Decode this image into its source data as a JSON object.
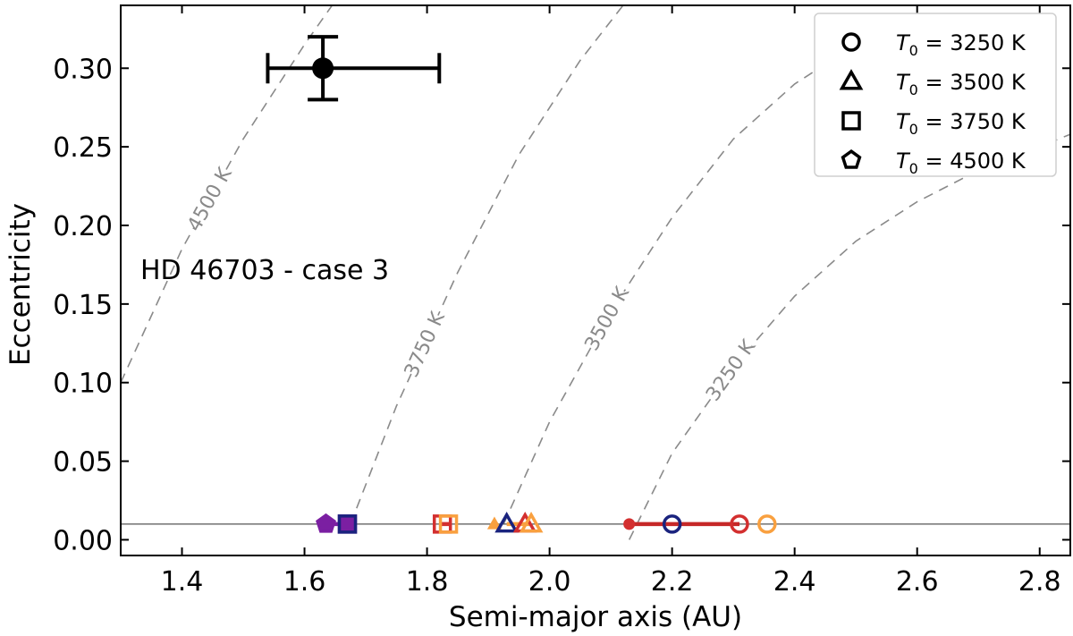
{
  "chart_data": {
    "type": "scatter",
    "xlabel": "Semi-major axis (AU)",
    "ylabel": "Eccentricity",
    "xlim": [
      1.3,
      2.85
    ],
    "ylim": [
      -0.01,
      0.34
    ],
    "x_ticks": [
      1.4,
      1.6,
      1.8,
      2.0,
      2.2,
      2.4,
      2.6,
      2.8
    ],
    "x_tick_labels": [
      "1.4",
      "1.6",
      "1.8",
      "2.0",
      "2.2",
      "2.4",
      "2.6",
      "2.8"
    ],
    "y_ticks": [
      0.0,
      0.05,
      0.1,
      0.15,
      0.2,
      0.25,
      0.3
    ],
    "y_tick_labels": [
      "0.00",
      "0.05",
      "0.10",
      "0.15",
      "0.20",
      "0.25",
      "0.30"
    ],
    "grid": false,
    "legend_position": "top-right",
    "annotation": "HD 46703 - case 3",
    "horizontal_line_y": 0.01,
    "observed": {
      "x": 1.63,
      "y": 0.3,
      "x_err": [
        0.09,
        0.19
      ],
      "y_err": [
        0.02,
        0.02
      ]
    },
    "dashed_curves": [
      {
        "label": "4500 K",
        "points": [
          [
            1.3,
            0.1
          ],
          [
            1.4,
            0.185
          ],
          [
            1.5,
            0.255
          ],
          [
            1.6,
            0.315
          ],
          [
            1.645,
            0.34
          ]
        ]
      },
      {
        "label": "3750 K",
        "points": [
          [
            1.675,
            0.01
          ],
          [
            1.75,
            0.085
          ],
          [
            1.85,
            0.17
          ],
          [
            1.95,
            0.245
          ],
          [
            2.05,
            0.305
          ],
          [
            2.12,
            0.34
          ]
        ]
      },
      {
        "label": "3500 K",
        "points": [
          [
            1.925,
            0.01
          ],
          [
            2.0,
            0.075
          ],
          [
            2.1,
            0.145
          ],
          [
            2.2,
            0.205
          ],
          [
            2.3,
            0.255
          ],
          [
            2.4,
            0.29
          ],
          [
            2.5,
            0.315
          ]
        ]
      },
      {
        "label": "3250 K",
        "points": [
          [
            2.13,
            0.0
          ],
          [
            2.2,
            0.055
          ],
          [
            2.3,
            0.11
          ],
          [
            2.4,
            0.155
          ],
          [
            2.5,
            0.19
          ],
          [
            2.6,
            0.215
          ],
          [
            2.7,
            0.235
          ],
          [
            2.8,
            0.25
          ],
          [
            2.85,
            0.258
          ]
        ]
      }
    ],
    "legend": [
      {
        "marker": "circle",
        "text": "T0 = 3250 K",
        "symbol": "T",
        "sub": "0",
        "rest": " = 3250 K"
      },
      {
        "marker": "triangle",
        "text": "T0 = 3500 K",
        "symbol": "T",
        "sub": "0",
        "rest": " = 3500 K"
      },
      {
        "marker": "square",
        "text": "T0 = 3750 K",
        "symbol": "T",
        "sub": "0",
        "rest": " = 3750 K"
      },
      {
        "marker": "pentagon",
        "text": "T0 = 4500 K",
        "symbol": "T",
        "sub": "0",
        "rest": " = 4500 K"
      }
    ],
    "tracks": [
      {
        "x1": 1.64,
        "x2": 1.68,
        "y": 0.01,
        "color": "#7b1fa2"
      },
      {
        "x1": 1.82,
        "x2": 1.84,
        "y": 0.01,
        "color": "#d32f2f"
      },
      {
        "x1": 1.93,
        "x2": 1.97,
        "y": 0.01,
        "color": "#f9a03f"
      },
      {
        "x1": 2.13,
        "x2": 2.31,
        "y": 0.01,
        "color": "#c62828"
      }
    ],
    "series": [
      {
        "marker": "circle",
        "points": [
          {
            "x": 2.13,
            "y": 0.01,
            "color": "#d32f2f",
            "filled": true,
            "small": true
          },
          {
            "x": 2.2,
            "y": 0.01,
            "color": "#1a237e",
            "filled": false
          },
          {
            "x": 2.31,
            "y": 0.01,
            "color": "#d32f2f",
            "filled": false
          },
          {
            "x": 2.355,
            "y": 0.01,
            "color": "#f9a03f",
            "filled": false
          }
        ]
      },
      {
        "marker": "triangle",
        "points": [
          {
            "x": 1.91,
            "y": 0.01,
            "color": "#f9a03f",
            "filled": true,
            "small": true
          },
          {
            "x": 1.93,
            "y": 0.01,
            "color": "#1a237e",
            "filled": false
          },
          {
            "x": 1.96,
            "y": 0.01,
            "color": "#d32f2f",
            "filled": false
          },
          {
            "x": 1.97,
            "y": 0.01,
            "color": "#f9a03f",
            "filled": false
          }
        ]
      },
      {
        "marker": "square",
        "points": [
          {
            "x": 1.67,
            "y": 0.01,
            "color": "#7b1fa2",
            "filled": true
          },
          {
            "x": 1.67,
            "y": 0.01,
            "color": "#1a237e",
            "filled": false
          },
          {
            "x": 1.825,
            "y": 0.01,
            "color": "#d32f2f",
            "filled": false
          },
          {
            "x": 1.835,
            "y": 0.01,
            "color": "#f9a03f",
            "filled": false
          }
        ]
      },
      {
        "marker": "pentagon",
        "points": [
          {
            "x": 1.635,
            "y": 0.01,
            "color": "#7b1fa2",
            "filled": true
          }
        ]
      }
    ],
    "colors": {
      "observed": "#000000",
      "dashed": "#8a8a8a",
      "hline": "#555555"
    }
  }
}
